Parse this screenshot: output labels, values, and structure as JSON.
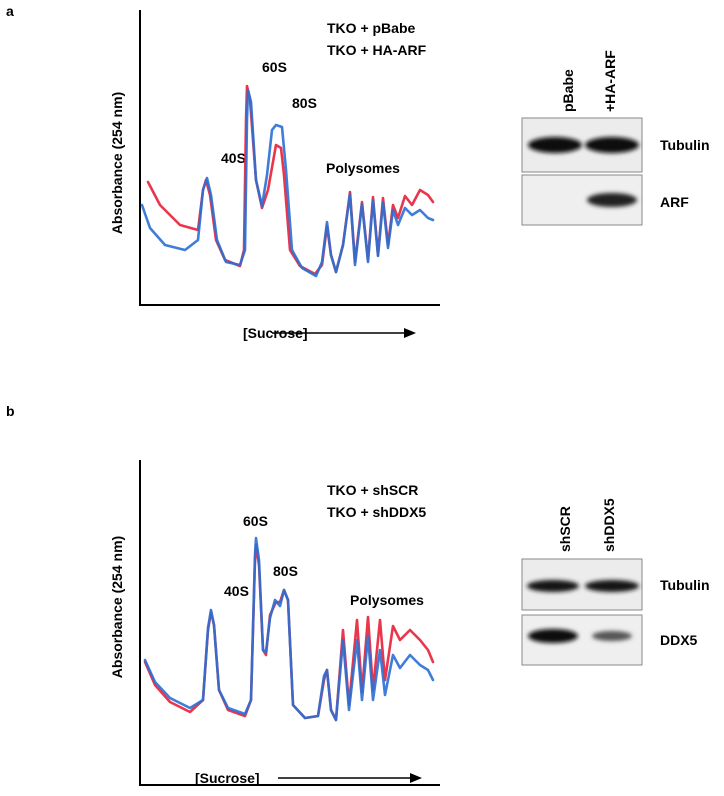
{
  "panels": [
    {
      "label": "a",
      "y_axis_label": "Absorbance (254 nm)",
      "x_axis_label": "[Sucrose]",
      "legend": [
        {
          "text": "TKO + pBabe",
          "color": "#e8203a"
        },
        {
          "text": "TKO + HA-ARF",
          "color": "#2a6fd4"
        }
      ],
      "peaks": [
        "40S",
        "60S",
        "80S",
        "Polysomes"
      ],
      "blot": {
        "lanes": [
          "pBabe",
          "+HA-ARF"
        ],
        "rows": [
          "Tubulin",
          "ARF"
        ]
      }
    },
    {
      "label": "b",
      "y_axis_label": "Absorbance (254 nm)",
      "x_axis_label": "[Sucrose]",
      "legend": [
        {
          "text": "TKO + shSCR",
          "color": "#e8203a"
        },
        {
          "text": "TKO + shDDX5",
          "color": "#2a6fd4"
        }
      ],
      "peaks": [
        "40S",
        "60S",
        "80S",
        "Polysomes"
      ],
      "blot": {
        "lanes": [
          "shSCR",
          "shDDX5"
        ],
        "rows": [
          "Tubulin",
          "DDX5"
        ]
      }
    }
  ]
}
